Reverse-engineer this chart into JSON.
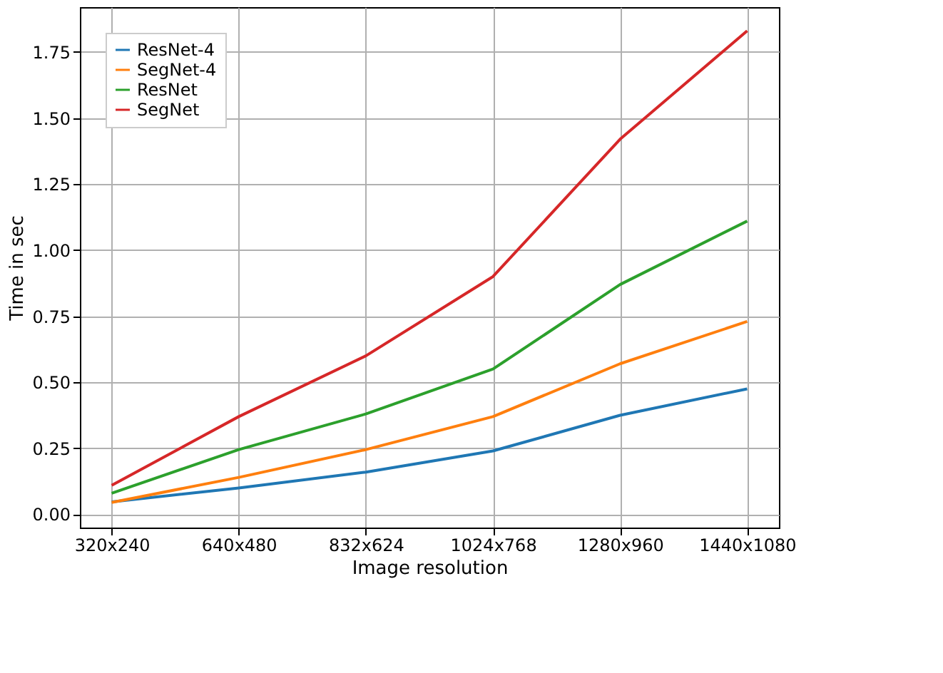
{
  "chart_data": {
    "type": "line",
    "xlabel": "Image resolution",
    "ylabel": "Time in sec",
    "categories": [
      "320x240",
      "640x480",
      "832x624",
      "1024x768",
      "1280x960",
      "1440x1080"
    ],
    "series": [
      {
        "name": "ResNet-4",
        "color": "#1f77b4",
        "values": [
          0.047,
          0.1,
          0.16,
          0.24,
          0.375,
          0.475
        ]
      },
      {
        "name": "SegNet-4",
        "color": "#ff7f0e",
        "values": [
          0.045,
          0.14,
          0.245,
          0.37,
          0.57,
          0.73
        ]
      },
      {
        "name": "ResNet",
        "color": "#2ca02c",
        "values": [
          0.08,
          0.245,
          0.38,
          0.55,
          0.87,
          1.11
        ]
      },
      {
        "name": "SegNet",
        "color": "#d62728",
        "values": [
          0.11,
          0.37,
          0.6,
          0.9,
          1.42,
          1.83
        ]
      }
    ],
    "ylim": [
      -0.05,
      1.92
    ],
    "yticks": [
      {
        "value": 0,
        "label": "0.00"
      },
      {
        "value": 0.25,
        "label": "0.25"
      },
      {
        "value": 0.5,
        "label": "0.50"
      },
      {
        "value": 0.75,
        "label": "0.75"
      },
      {
        "value": 1,
        "label": "1.00"
      },
      {
        "value": 1.25,
        "label": "1.25"
      },
      {
        "value": 1.5,
        "label": "1.50"
      },
      {
        "value": 1.75,
        "label": "1.75"
      }
    ],
    "grid": true,
    "legend": "top left",
    "marker": "none",
    "line_style": "solid"
  }
}
